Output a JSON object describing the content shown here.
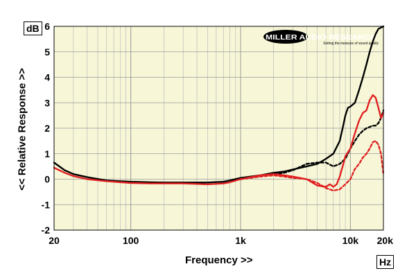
{
  "chart_data": {
    "type": "line",
    "y_unit": "dB",
    "x_unit": "Hz",
    "ylabel": "<< Relative Response >>",
    "xlabel": "Frequency >>",
    "xscale": "log",
    "xlim": [
      20,
      20000
    ],
    "ylim": [
      -2,
      6
    ],
    "grid": true,
    "y_ticks": [
      6,
      5,
      4,
      3,
      2,
      1,
      0,
      -1,
      -2
    ],
    "y_tick_labels": [
      "6",
      "5",
      "4",
      "3",
      "2",
      "1",
      "0",
      "-1",
      "-2"
    ],
    "x_ticks": [
      20,
      100,
      1000,
      10000,
      20000
    ],
    "x_tick_labels": [
      "20",
      "100",
      "1k",
      "10k",
      "20k"
    ],
    "watermark": "MILLER AUDIO RESEARCH",
    "watermark_tagline": "Setting the measure of sound quality",
    "colors": {
      "background": "#f7f7d8",
      "grid": "#b8b8b8",
      "black": "#000000",
      "red": "#e02020"
    },
    "series": [
      {
        "color": "#000000",
        "style": "solid",
        "x": [
          20,
          25,
          30,
          40,
          60,
          80,
          100,
          150,
          200,
          300,
          500,
          700,
          800,
          1000,
          1500,
          2000,
          2500,
          3000,
          4000,
          5000,
          6000,
          7000,
          8000,
          8500,
          9000,
          9500,
          10000,
          11000,
          12000,
          13000,
          14000,
          15000,
          16000,
          17000,
          18000,
          19000,
          20000
        ],
        "y": [
          0.65,
          0.35,
          0.2,
          0.08,
          -0.05,
          -0.08,
          -0.1,
          -0.12,
          -0.13,
          -0.13,
          -0.13,
          -0.1,
          -0.05,
          0.05,
          0.15,
          0.25,
          0.3,
          0.38,
          0.5,
          0.6,
          0.8,
          1.0,
          1.5,
          2.0,
          2.5,
          2.8,
          2.85,
          3.0,
          3.5,
          4.0,
          4.5,
          5.0,
          5.4,
          5.7,
          5.9,
          5.95,
          6.0
        ]
      },
      {
        "color": "#000000",
        "style": "dashed",
        "x": [
          1000,
          1500,
          2000,
          2500,
          3000,
          4000,
          5000,
          6000,
          7000,
          8000,
          9000,
          10000,
          11000,
          12000,
          13000,
          14000,
          15000,
          16000,
          17000,
          18000,
          19000,
          20000
        ],
        "y": [
          0.0,
          0.1,
          0.2,
          0.25,
          0.35,
          0.6,
          0.65,
          0.65,
          0.5,
          0.6,
          0.8,
          1.2,
          1.5,
          1.75,
          1.9,
          2.0,
          2.05,
          2.1,
          2.1,
          2.2,
          2.4,
          2.7
        ]
      },
      {
        "color": "#e02020",
        "style": "solid",
        "x": [
          20,
          25,
          30,
          40,
          60,
          80,
          100,
          150,
          200,
          300,
          500,
          700,
          800,
          1000,
          1500,
          2000,
          2500,
          3000,
          4000,
          5000,
          6000,
          6500,
          7000,
          7500,
          8000,
          8500,
          9000,
          10000,
          11000,
          12000,
          13000,
          14000,
          15000,
          16000,
          17000,
          18000,
          19000,
          20000
        ],
        "y": [
          0.45,
          0.25,
          0.12,
          0.0,
          -0.08,
          -0.12,
          -0.15,
          -0.17,
          -0.17,
          -0.17,
          -0.2,
          -0.17,
          -0.12,
          0.0,
          0.15,
          0.2,
          0.15,
          0.1,
          0.0,
          -0.25,
          -0.3,
          -0.2,
          -0.3,
          -0.2,
          0.1,
          0.5,
          0.9,
          1.2,
          1.8,
          2.3,
          2.6,
          2.7,
          3.1,
          3.3,
          3.2,
          2.8,
          2.4,
          2.6
        ]
      },
      {
        "color": "#e02020",
        "style": "dashed",
        "x": [
          1000,
          1500,
          2000,
          2500,
          3000,
          4000,
          5000,
          6000,
          7000,
          8000,
          9000,
          10000,
          11000,
          12000,
          13000,
          14000,
          15000,
          16000,
          17000,
          18000,
          19000,
          20000
        ],
        "y": [
          0.0,
          0.1,
          0.15,
          0.1,
          0.05,
          0.0,
          -0.15,
          -0.35,
          -0.45,
          -0.4,
          -0.2,
          0.0,
          0.4,
          0.6,
          0.85,
          1.0,
          1.2,
          1.45,
          1.5,
          1.35,
          1.0,
          0.2
        ]
      }
    ]
  }
}
